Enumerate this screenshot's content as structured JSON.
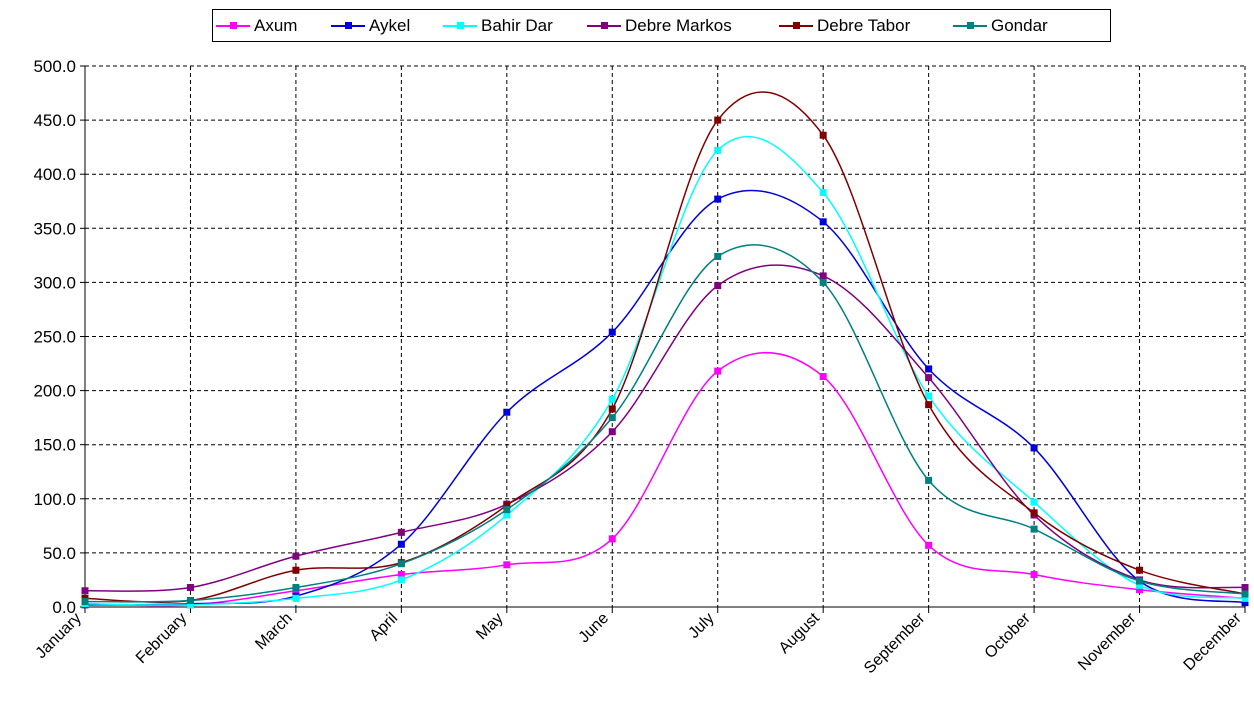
{
  "chart_data": {
    "type": "line",
    "categories": [
      "January",
      "February",
      "March",
      "April",
      "May",
      "June",
      "July",
      "August",
      "September",
      "October",
      "November",
      "December"
    ],
    "ylim": [
      0,
      500
    ],
    "yticks": [
      "0.0",
      "50.0",
      "100.0",
      "150.0",
      "200.0",
      "250.0",
      "300.0",
      "350.0",
      "400.0",
      "450.0",
      "500.0"
    ],
    "grid": "dashed",
    "legend_position": "top",
    "series": [
      {
        "name": "Axum",
        "color": "#ff00ff",
        "values": [
          3,
          2,
          15,
          30,
          39,
          63,
          218,
          213,
          57,
          30,
          16,
          8
        ]
      },
      {
        "name": "Aykel",
        "color": "#0000dd",
        "values": [
          2,
          3,
          10,
          58,
          180,
          254,
          377,
          356,
          220,
          147,
          24,
          4
        ]
      },
      {
        "name": "Bahir Dar",
        "color": "#00ffff",
        "values": [
          3,
          2,
          8,
          25,
          85,
          192,
          422,
          383,
          195,
          97,
          20,
          8
        ]
      },
      {
        "name": "Debre Markos",
        "color": "#800080",
        "values": [
          15,
          18,
          47,
          69,
          95,
          162,
          297,
          306,
          212,
          85,
          25,
          18
        ]
      },
      {
        "name": "Debre Tabor",
        "color": "#800000",
        "values": [
          8,
          6,
          34,
          41,
          94,
          183,
          450,
          436,
          187,
          87,
          34,
          12
        ]
      },
      {
        "name": "Gondar",
        "color": "#008080",
        "values": [
          5,
          6,
          18,
          40,
          90,
          175,
          324,
          300,
          117,
          72,
          24,
          12
        ]
      }
    ]
  }
}
